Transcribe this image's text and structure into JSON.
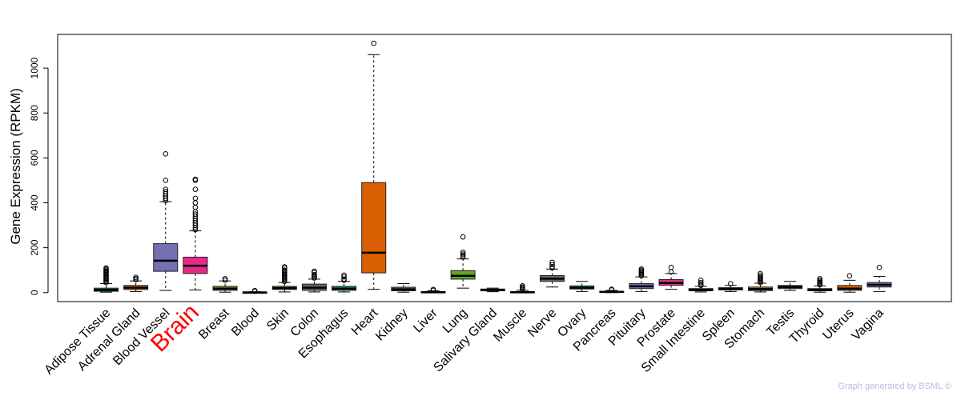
{
  "chart_data": {
    "type": "box",
    "title": "",
    "xlabel": "",
    "ylabel": "Gene Expression (RPKM)",
    "ylim": [
      -40,
      1150
    ],
    "yticks": [
      0,
      200,
      400,
      600,
      800,
      1000
    ],
    "highlight": "Brain",
    "highlight_color": "#ff0000",
    "categories": [
      "Adipose Tissue",
      "Adrenal Gland",
      "Blood Vessel",
      "Brain",
      "Breast",
      "Blood",
      "Skin",
      "Colon",
      "Esophagus",
      "Heart",
      "Kidney",
      "Liver",
      "Lung",
      "Salivary Gland",
      "Muscle",
      "Nerve",
      "Ovary",
      "Pancreas",
      "Pituitary",
      "Prostate",
      "Small Intestine",
      "Spleen",
      "Stomach",
      "Testis",
      "Thyroid",
      "Uterus",
      "Vagina"
    ],
    "colors": [
      "#1b9e77",
      "#d95f02",
      "#7570b3",
      "#e7298a",
      "#66a61e",
      "#e6ab02",
      "#a6761d",
      "#666666",
      "#1b9e77",
      "#d95f02",
      "#7570b3",
      "#e7298a",
      "#66a61e",
      "#e6ab02",
      "#a6761d",
      "#666666",
      "#1b9e77",
      "#d95f02",
      "#7570b3",
      "#e7298a",
      "#66a61e",
      "#e6ab02",
      "#a6761d",
      "#666666",
      "#1b9e77",
      "#d95f02",
      "#7570b3"
    ],
    "boxes": [
      {
        "min": 2,
        "q1": 6,
        "median": 12,
        "q3": 20,
        "max": 40,
        "outliers": [
          45,
          50,
          55,
          60,
          65,
          70,
          75,
          80,
          85,
          90,
          95,
          100,
          105,
          110
        ]
      },
      {
        "min": 5,
        "q1": 14,
        "median": 22,
        "q3": 32,
        "max": 52,
        "outliers": [
          58,
          62,
          68
        ]
      },
      {
        "min": 10,
        "q1": 95,
        "median": 142,
        "q3": 218,
        "max": 405,
        "outliers": [
          410,
          420,
          430,
          440,
          450,
          460,
          500,
          618
        ]
      },
      {
        "min": 12,
        "q1": 85,
        "median": 120,
        "q3": 158,
        "max": 275,
        "outliers": [
          280,
          290,
          300,
          310,
          320,
          330,
          340,
          350,
          360,
          380,
          400,
          420,
          460,
          500,
          505
        ]
      },
      {
        "min": 2,
        "q1": 10,
        "median": 18,
        "q3": 28,
        "max": 52,
        "outliers": [
          55,
          62
        ]
      },
      {
        "min": 0,
        "q1": 0,
        "median": 1,
        "q3": 2,
        "max": 4,
        "outliers": [
          6,
          9
        ]
      },
      {
        "min": 3,
        "q1": 14,
        "median": 20,
        "q3": 28,
        "max": 45,
        "outliers": [
          50,
          55,
          60,
          65,
          70,
          75,
          80,
          85,
          90,
          95,
          100,
          110,
          115
        ]
      },
      {
        "min": 3,
        "q1": 10,
        "median": 22,
        "q3": 38,
        "max": 60,
        "outliers": [
          65,
          70,
          75,
          80,
          90,
          95
        ]
      },
      {
        "min": 3,
        "q1": 10,
        "median": 18,
        "q3": 28,
        "max": 50,
        "outliers": [
          55,
          60,
          70,
          78
        ]
      },
      {
        "min": 15,
        "q1": 88,
        "median": 178,
        "q3": 490,
        "max": 1060,
        "outliers": [
          1110
        ]
      },
      {
        "min": 2,
        "q1": 8,
        "median": 15,
        "q3": 24,
        "max": 40,
        "outliers": []
      },
      {
        "min": 0,
        "q1": 1,
        "median": 2,
        "q3": 4,
        "max": 8,
        "outliers": [
          10,
          14
        ]
      },
      {
        "min": 20,
        "q1": 60,
        "median": 75,
        "q3": 98,
        "max": 150,
        "outliers": [
          158,
          165,
          172,
          180,
          248
        ]
      },
      {
        "min": 4,
        "q1": 8,
        "median": 12,
        "q3": 16,
        "max": 20,
        "outliers": []
      },
      {
        "min": 0,
        "q1": 1,
        "median": 2,
        "q3": 4,
        "max": 10,
        "outliers": [
          15,
          20,
          25,
          30
        ]
      },
      {
        "min": 25,
        "q1": 50,
        "median": 62,
        "q3": 76,
        "max": 105,
        "outliers": [
          110,
          115,
          125,
          135
        ]
      },
      {
        "min": 5,
        "q1": 16,
        "median": 22,
        "q3": 30,
        "max": 50,
        "outliers": []
      },
      {
        "min": 0,
        "q1": 1,
        "median": 3,
        "q3": 6,
        "max": 10,
        "outliers": [
          12,
          15
        ]
      },
      {
        "min": 5,
        "q1": 18,
        "median": 28,
        "q3": 40,
        "max": 70,
        "outliers": [
          75,
          80,
          85,
          90,
          95,
          100,
          105
        ]
      },
      {
        "min": 15,
        "q1": 33,
        "median": 43,
        "q3": 58,
        "max": 85,
        "outliers": [
          92,
          112
        ]
      },
      {
        "min": 3,
        "q1": 8,
        "median": 12,
        "q3": 18,
        "max": 28,
        "outliers": [
          32,
          38,
          45,
          55
        ]
      },
      {
        "min": 5,
        "q1": 12,
        "median": 17,
        "q3": 22,
        "max": 32,
        "outliers": [
          40
        ]
      },
      {
        "min": 3,
        "q1": 9,
        "median": 16,
        "q3": 25,
        "max": 42,
        "outliers": [
          45,
          50,
          55,
          60,
          65,
          70,
          78,
          85
        ]
      },
      {
        "min": 10,
        "q1": 18,
        "median": 25,
        "q3": 32,
        "max": 50,
        "outliers": []
      },
      {
        "min": 2,
        "q1": 8,
        "median": 12,
        "q3": 18,
        "max": 30,
        "outliers": [
          35,
          40,
          45,
          50,
          55,
          62
        ]
      },
      {
        "min": 2,
        "q1": 10,
        "median": 18,
        "q3": 32,
        "max": 55,
        "outliers": [
          75
        ]
      },
      {
        "min": 5,
        "q1": 25,
        "median": 35,
        "q3": 45,
        "max": 72,
        "outliers": [
          112
        ]
      }
    ]
  },
  "footer": {
    "credit": "Graph generated by BSML ©"
  }
}
